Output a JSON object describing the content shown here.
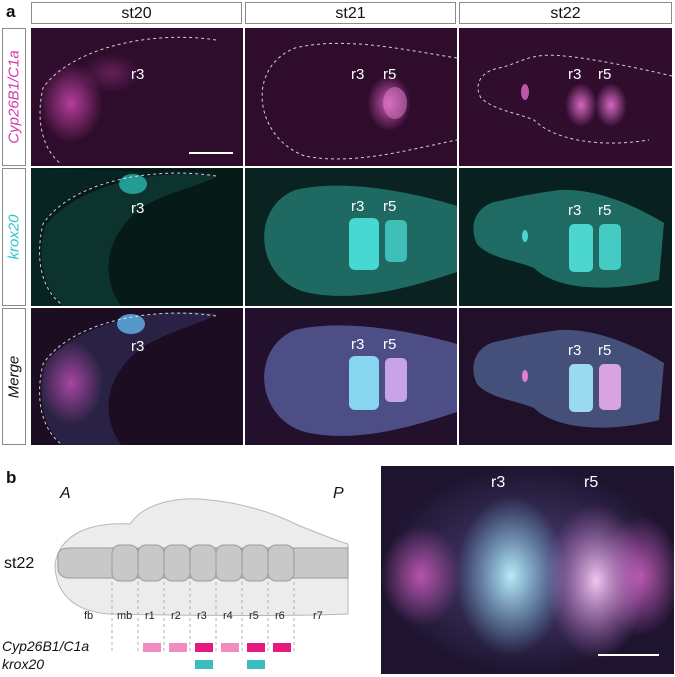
{
  "panel_a": {
    "letter": "a",
    "stages": [
      "st20",
      "st21",
      "st22"
    ],
    "rows": [
      {
        "label": "Cyp26B1/C1a",
        "color": "#d23aa8"
      },
      {
        "label": "krox20",
        "color": "#2fc4c9"
      },
      {
        "label": "Merge",
        "color": "#222222"
      }
    ],
    "labels": {
      "r3": "r3",
      "r5": "r5"
    }
  },
  "panel_b": {
    "letter": "b",
    "anterior": "A",
    "posterior": "P",
    "stage": "st22",
    "segments": [
      "fb",
      "mb",
      "r1",
      "r2",
      "r3",
      "r4",
      "r5",
      "r6",
      "r7"
    ],
    "legend": {
      "cyp": "Cyp26B1/C1a",
      "krox": "krox20"
    },
    "zoom_labels": {
      "r3": "r3",
      "r5": "r5"
    }
  },
  "colors": {
    "magenta_dark": "#3a0f35",
    "teal_dark": "#08211f",
    "merge_dark": "#2a1236",
    "cyp_strong": "#e6197f",
    "cyp_weak": "#f08cc0",
    "krox": "#3bbdc0"
  }
}
